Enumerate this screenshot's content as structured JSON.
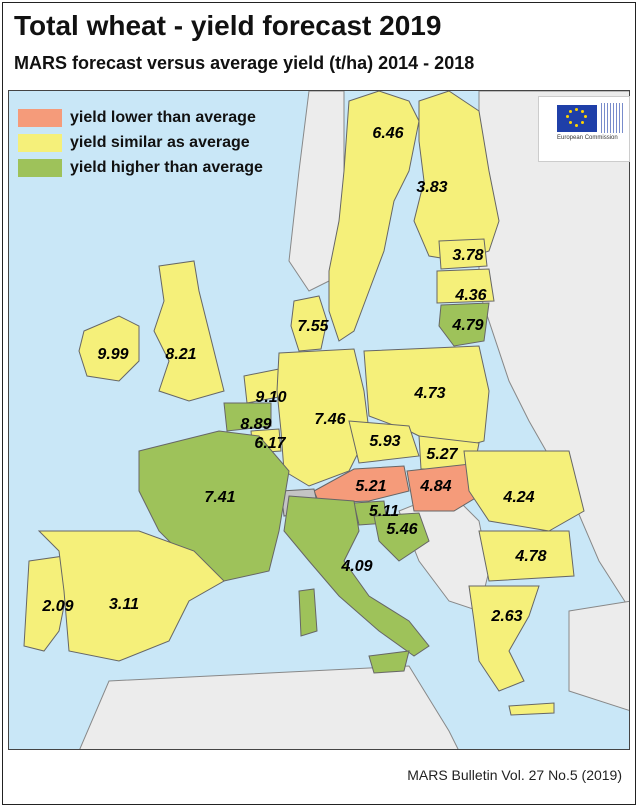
{
  "title": "Total wheat - yield forecast 2019",
  "subtitle": "MARS forecast versus average yield (t/ha) 2014 - 2018",
  "legend": [
    {
      "label": "yield lower than average",
      "color": "#f59b7a"
    },
    {
      "label": "yield similar as average",
      "color": "#f5f07a"
    },
    {
      "label": "yield higher than average",
      "color": "#9ec25a"
    }
  ],
  "colors": {
    "sea": "#c9e7f7",
    "non_eu": "#ececec",
    "no_data": "#c4c4c4",
    "border": "#666666"
  },
  "logo": {
    "text": "European Commission"
  },
  "countries": [
    {
      "name": "Sweden",
      "value": "6.46",
      "class": "similar"
    },
    {
      "name": "Finland",
      "value": "3.83",
      "class": "similar"
    },
    {
      "name": "Estonia",
      "value": "3.78",
      "class": "similar"
    },
    {
      "name": "Latvia",
      "value": "4.36",
      "class": "similar"
    },
    {
      "name": "Lithuania",
      "value": "4.79",
      "class": "higher"
    },
    {
      "name": "Ireland",
      "value": "9.99",
      "class": "similar"
    },
    {
      "name": "United Kingdom",
      "value": "8.21",
      "class": "similar"
    },
    {
      "name": "Denmark",
      "value": "7.55",
      "class": "similar"
    },
    {
      "name": "Netherlands",
      "value": "9.10",
      "class": "similar"
    },
    {
      "name": "Belgium",
      "value": "8.89",
      "class": "similar"
    },
    {
      "name": "Luxembourg",
      "value": "6.17",
      "class": "similar"
    },
    {
      "name": "Germany",
      "value": "7.46",
      "class": "similar"
    },
    {
      "name": "Poland",
      "value": "4.73",
      "class": "similar"
    },
    {
      "name": "Czechia",
      "value": "5.93",
      "class": "similar"
    },
    {
      "name": "Slovakia",
      "value": "5.27",
      "class": "similar"
    },
    {
      "name": "Austria",
      "value": "5.21",
      "class": "lower"
    },
    {
      "name": "Hungary",
      "value": "4.84",
      "class": "lower"
    },
    {
      "name": "France",
      "value": "7.41",
      "class": "higher"
    },
    {
      "name": "Slovenia",
      "value": "5.11",
      "class": "higher"
    },
    {
      "name": "Croatia",
      "value": "5.46",
      "class": "higher"
    },
    {
      "name": "Romania",
      "value": "4.24",
      "class": "similar"
    },
    {
      "name": "Bulgaria",
      "value": "4.78",
      "class": "similar"
    },
    {
      "name": "Italy",
      "value": "4.09",
      "class": "higher"
    },
    {
      "name": "Portugal",
      "value": "2.09",
      "class": "similar"
    },
    {
      "name": "Spain",
      "value": "3.11",
      "class": "similar"
    },
    {
      "name": "Greece",
      "value": "2.63",
      "class": "similar"
    }
  ],
  "footer": "MARS Bulletin Vol. 27 No.5 (2019)"
}
